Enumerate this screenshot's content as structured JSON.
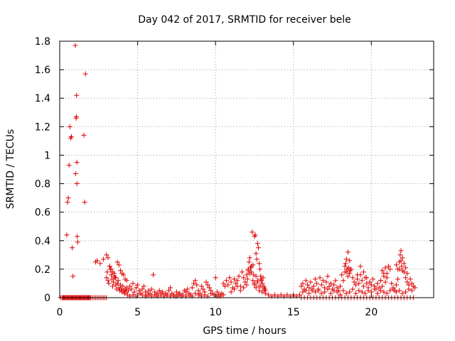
{
  "chart_data": {
    "type": "scatter",
    "title": "Day 042 of 2017, SRMTID for receiver bele",
    "xlabel": "GPS time / hours",
    "ylabel": "SRMTID / TECUs",
    "xlim": [
      0,
      24
    ],
    "ylim": [
      0,
      1.8
    ],
    "grid": true,
    "x_ticks": [
      0,
      5,
      10,
      15,
      20
    ],
    "y_ticks": [
      0,
      0.2,
      0.4,
      0.6,
      0.8,
      1,
      1.2,
      1.4,
      1.6,
      1.8
    ],
    "x_tick_labels": [
      "0",
      "5",
      "10",
      "15",
      "20"
    ],
    "y_tick_labels": [
      "0",
      "0.2",
      "0.4",
      "0.6",
      "0.8",
      "1",
      "1.2",
      "1.4",
      "1.6",
      "1.8"
    ],
    "marker": "+",
    "series": [
      {
        "name": "SRMTID",
        "color": "#dd0000",
        "x": [
          0.05,
          0.15,
          0.2,
          0.25,
          0.3,
          0.35,
          0.4,
          0.45,
          0.5,
          0.55,
          0.6,
          0.65,
          0.7,
          0.75,
          0.8,
          0.85,
          0.9,
          0.95,
          1.0,
          1.05,
          1.1,
          1.15,
          1.2,
          1.25,
          1.3,
          1.35,
          1.4,
          1.45,
          1.5,
          1.55,
          1.6,
          1.65,
          1.7,
          1.75,
          1.8,
          1.85,
          1.9,
          1.95,
          2.0,
          2.1,
          2.2,
          2.3,
          2.4,
          2.5,
          2.6,
          2.7,
          2.8,
          2.9,
          3.0,
          0.45,
          0.5,
          0.55,
          0.6,
          0.65,
          0.7,
          0.75,
          0.8,
          0.85,
          1.0,
          1.02,
          1.05,
          1.07,
          1.08,
          1.1,
          1.1,
          1.12,
          1.15,
          1.55,
          1.6,
          1.65,
          2.3,
          2.4,
          2.6,
          2.8,
          3.0,
          3.1,
          3.2,
          3.3,
          3.4,
          3.5,
          3.6,
          3.7,
          3.8,
          3.9,
          4.0,
          4.1,
          4.2,
          4.3,
          3.0,
          3.05,
          3.1,
          3.15,
          3.2,
          3.25,
          3.3,
          3.35,
          3.4,
          3.45,
          3.5,
          3.55,
          3.6,
          3.65,
          3.7,
          3.75,
          3.8,
          3.85,
          3.9,
          3.95,
          4.0,
          4.05,
          4.1,
          4.15,
          4.2,
          4.25,
          4.3,
          4.35,
          4.4,
          4.5,
          4.6,
          4.7,
          4.8,
          4.9,
          5.0,
          5.1,
          5.2,
          5.3,
          5.4,
          5.5,
          5.6,
          5.7,
          5.8,
          5.9,
          6.0,
          6.1,
          6.2,
          6.3,
          6.4,
          6.5,
          6.6,
          6.7,
          6.8,
          6.9,
          7.0,
          7.1,
          7.2,
          7.3,
          7.4,
          7.5,
          7.6,
          7.7,
          7.8,
          7.9,
          8.0,
          8.1,
          8.2,
          8.3,
          8.4,
          8.5,
          8.6,
          8.7,
          8.8,
          8.9,
          9.0,
          9.1,
          9.2,
          9.3,
          9.4,
          9.5,
          9.6,
          9.7,
          9.8,
          9.9,
          10.0,
          10.1,
          10.2,
          10.3,
          10.4,
          10.5,
          4.5,
          4.7,
          4.9,
          5.1,
          5.3,
          5.5,
          5.7,
          5.9,
          6.1,
          6.3,
          6.5,
          6.7,
          6.9,
          7.1,
          7.3,
          7.5,
          7.7,
          7.9,
          8.1,
          8.3,
          8.5,
          8.7,
          8.9,
          9.1,
          9.3,
          9.5,
          9.7,
          9.9,
          10.1,
          10.3,
          10.5,
          10.6,
          10.7,
          10.8,
          10.9,
          11.0,
          11.1,
          11.2,
          11.3,
          11.4,
          11.5,
          11.6,
          11.7,
          11.8,
          11.9,
          12.0,
          12.1,
          12.2,
          12.3,
          12.4,
          12.5,
          12.6,
          12.7,
          12.8,
          12.9,
          13.0,
          13.1,
          13.2,
          11.0,
          11.2,
          11.4,
          11.6,
          11.8,
          12.0,
          12.05,
          12.1,
          12.15,
          12.2,
          12.25,
          12.3,
          12.35,
          12.4,
          12.45,
          12.5,
          12.55,
          12.6,
          12.65,
          12.7,
          12.75,
          12.8,
          12.85,
          12.9,
          12.95,
          13.0,
          13.05,
          13.1,
          13.15,
          12.5,
          12.6,
          12.7,
          12.8,
          12.9,
          13.0,
          13.2,
          13.4,
          13.6,
          13.8,
          14.0,
          14.2,
          14.4,
          14.6,
          14.8,
          15.0,
          15.2,
          15.4,
          15.5,
          15.6,
          15.7,
          15.8,
          15.9,
          16.0,
          16.1,
          16.2,
          16.3,
          16.4,
          16.5,
          16.6,
          16.7,
          16.8,
          16.9,
          17.0,
          17.1,
          17.2,
          17.3,
          17.4,
          17.5,
          17.6,
          17.7,
          17.8,
          17.9,
          18.0,
          18.1,
          18.2,
          18.3,
          18.4,
          18.5,
          18.6,
          18.7,
          18.8,
          18.9,
          19.0,
          19.1,
          19.2,
          19.3,
          19.4,
          19.5,
          19.6,
          19.7,
          19.8,
          19.9,
          20.0,
          20.1,
          20.2,
          20.3,
          20.4,
          20.5,
          20.6,
          20.7,
          20.8,
          20.9,
          21.0,
          21.1,
          21.2,
          21.3,
          21.4,
          21.5,
          21.6,
          21.7,
          21.8,
          21.9,
          22.0,
          22.1,
          22.2,
          22.3,
          22.4,
          22.5,
          22.6,
          22.7,
          22.8,
          15.6,
          15.8,
          16.0,
          16.2,
          16.4,
          16.6,
          16.8,
          17.0,
          17.2,
          17.4,
          17.6,
          17.8,
          18.0,
          18.2,
          18.4,
          18.6,
          18.8,
          19.0,
          19.2,
          19.4,
          19.6,
          19.8,
          20.0,
          20.2,
          20.4,
          20.6,
          20.8,
          21.0,
          21.2,
          21.4,
          21.6,
          21.8,
          22.0,
          22.2,
          22.4,
          22.6,
          18.3,
          18.35,
          18.4,
          18.45,
          18.5,
          18.55,
          18.6,
          18.65,
          19.1,
          19.3,
          19.5,
          19.7,
          20.6,
          20.7,
          20.8,
          20.9,
          21.0,
          21.6,
          21.7,
          21.8,
          21.85,
          21.9,
          21.95,
          22.0,
          22.1,
          22.2,
          22.3,
          15.5,
          15.7,
          15.9,
          16.1,
          16.3,
          16.5,
          16.7,
          16.9,
          17.1,
          17.3,
          17.5,
          17.7,
          17.9,
          18.1,
          18.3,
          18.5,
          18.7,
          18.9,
          19.1,
          19.3,
          19.5,
          19.7,
          19.9,
          20.1,
          20.3,
          20.5,
          20.7,
          20.9,
          21.1,
          21.3,
          21.5,
          21.7,
          21.9,
          22.1,
          22.3,
          22.5,
          22.7
        ],
        "y": [
          0,
          0,
          0,
          0,
          0,
          0,
          0,
          0,
          0,
          0,
          0,
          0,
          0,
          0,
          0,
          0,
          0,
          0,
          0,
          0,
          0,
          0,
          0,
          0,
          0,
          0,
          0,
          0,
          0,
          0,
          0,
          0,
          0,
          0,
          0,
          0,
          0,
          0,
          0,
          0,
          0,
          0,
          0,
          0,
          0,
          0,
          0,
          0,
          0,
          0.44,
          0.67,
          0.7,
          0.93,
          1.2,
          1.12,
          1.13,
          0.35,
          0.15,
          1.77,
          0.87,
          1.26,
          1.27,
          1.42,
          0.95,
          0.8,
          0.43,
          0.39,
          1.14,
          0.67,
          1.57,
          0.25,
          0.26,
          0.24,
          0.27,
          0.3,
          0.28,
          0.22,
          0.2,
          0.18,
          0.15,
          0.14,
          0.25,
          0.23,
          0.19,
          0.17,
          0.16,
          0.13,
          0.12,
          0.14,
          0.18,
          0.12,
          0.1,
          0.22,
          0.2,
          0.16,
          0.13,
          0.08,
          0.11,
          0.17,
          0.14,
          0.09,
          0.06,
          0.1,
          0.12,
          0.07,
          0.05,
          0.09,
          0.06,
          0.04,
          0.08,
          0.05,
          0.03,
          0.06,
          0.04,
          0.07,
          0.02,
          0.05,
          0.08,
          0.06,
          0.1,
          0.04,
          0.07,
          0.09,
          0.05,
          0.03,
          0.06,
          0.08,
          0.04,
          0.02,
          0.05,
          0.03,
          0.06,
          0.16,
          0.04,
          0.02,
          0.03,
          0.05,
          0.02,
          0.04,
          0.01,
          0.03,
          0.02,
          0.05,
          0.07,
          0.03,
          0.02,
          0.01,
          0.04,
          0.02,
          0.03,
          0.01,
          0.02,
          0.05,
          0.04,
          0.06,
          0.03,
          0.02,
          0.07,
          0.1,
          0.12,
          0.09,
          0.05,
          0.03,
          0.08,
          0.06,
          0.04,
          0.11,
          0.09,
          0.07,
          0.05,
          0.03,
          0.02,
          0.14,
          0.04,
          0.02,
          0.01,
          0.03,
          0.02,
          0.01,
          0.02,
          0.01,
          0.03,
          0.02,
          0.01,
          0.02,
          0.01,
          0.02,
          0.01,
          0.03,
          0.01,
          0.02,
          0.01,
          0.02,
          0.01,
          0.03,
          0.02,
          0.01,
          0.02,
          0.01,
          0.03,
          0.02,
          0.01,
          0.02,
          0.01,
          0.03,
          0.02,
          0.01,
          0.02,
          0.1,
          0.08,
          0.12,
          0.09,
          0.14,
          0.11,
          0.07,
          0.13,
          0.1,
          0.12,
          0.15,
          0.08,
          0.18,
          0.14,
          0.11,
          0.16,
          0.2,
          0.17,
          0.22,
          0.12,
          0.09,
          0.15,
          0.11,
          0.08,
          0.13,
          0.1,
          0.07,
          0.05,
          0.04,
          0.06,
          0.08,
          0.05,
          0.07,
          0.09,
          0.13,
          0.19,
          0.25,
          0.28,
          0.21,
          0.18,
          0.46,
          0.23,
          0.16,
          0.43,
          0.44,
          0.31,
          0.27,
          0.38,
          0.35,
          0.24,
          0.2,
          0.15,
          0.12,
          0.1,
          0.14,
          0.08,
          0.06,
          0.1,
          0.07,
          0.12,
          0.05,
          0.08,
          0.04,
          0.03,
          0.02,
          0.01,
          0.02,
          0.01,
          0.02,
          0.01,
          0.02,
          0.01,
          0.02,
          0.01,
          0.02,
          0.08,
          0.1,
          0.06,
          0.12,
          0.09,
          0.07,
          0.11,
          0.05,
          0.08,
          0.13,
          0.1,
          0.06,
          0.14,
          0.09,
          0.12,
          0.07,
          0.11,
          0.15,
          0.08,
          0.1,
          0.06,
          0.09,
          0.12,
          0.07,
          0.05,
          0.08,
          0.16,
          0.12,
          0.22,
          0.18,
          0.32,
          0.26,
          0.2,
          0.14,
          0.11,
          0.09,
          0.13,
          0.1,
          0.16,
          0.12,
          0.08,
          0.14,
          0.1,
          0.07,
          0.11,
          0.09,
          0.13,
          0.08,
          0.06,
          0.1,
          0.07,
          0.12,
          0.08,
          0.15,
          0.11,
          0.17,
          0.22,
          0.2,
          0.1,
          0.07,
          0.05,
          0.09,
          0.13,
          0.2,
          0.33,
          0.28,
          0.18,
          0.14,
          0.11,
          0.09,
          0.13,
          0.1,
          0.08,
          0.07,
          0.04,
          0.05,
          0.03,
          0.06,
          0.04,
          0.05,
          0.03,
          0.04,
          0.06,
          0.03,
          0.05,
          0.04,
          0.02,
          0.05,
          0.03,
          0.04,
          0.06,
          0.03,
          0.05,
          0.04,
          0.03,
          0.05,
          0.04,
          0.06,
          0.03,
          0.05,
          0.04,
          0.03,
          0.05,
          0.06,
          0.04,
          0.05,
          0.03,
          0.04,
          0.06,
          0.05,
          0.18,
          0.24,
          0.27,
          0.2,
          0.15,
          0.21,
          0.17,
          0.19,
          0.16,
          0.22,
          0.18,
          0.14,
          0.12,
          0.19,
          0.17,
          0.21,
          0.14,
          0.23,
          0.2,
          0.25,
          0.3,
          0.26,
          0.22,
          0.19,
          0.24,
          0.21,
          0.17,
          0,
          0,
          0,
          0,
          0,
          0,
          0,
          0,
          0,
          0,
          0,
          0,
          0,
          0,
          0,
          0,
          0,
          0,
          0,
          0,
          0,
          0,
          0,
          0,
          0,
          0,
          0,
          0,
          0,
          0,
          0,
          0,
          0,
          0,
          0,
          0,
          0
        ]
      }
    ]
  }
}
